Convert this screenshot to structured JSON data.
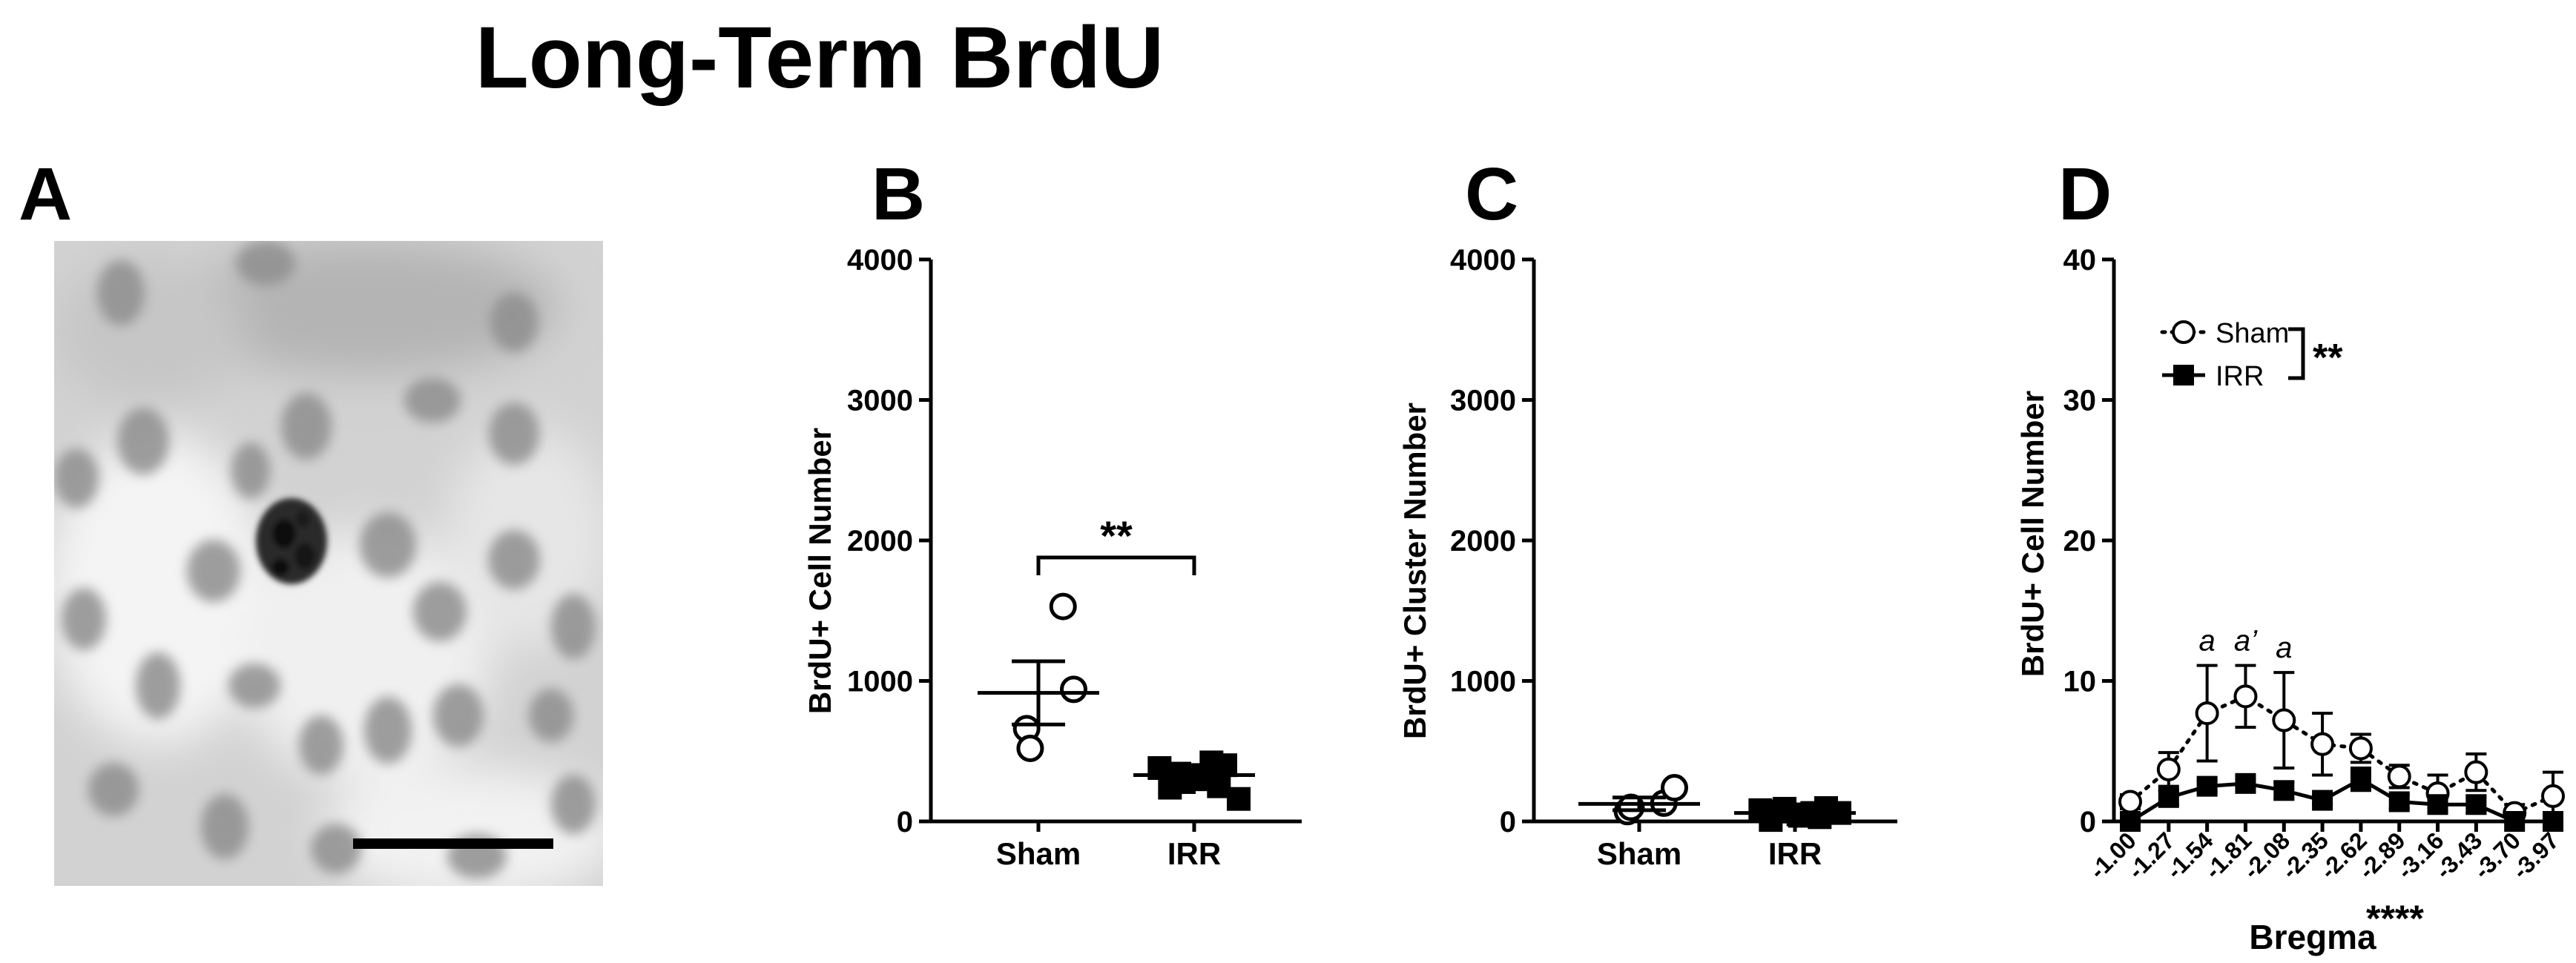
{
  "figure": {
    "title": "Long-Term BrdU"
  },
  "panel_a": {
    "letter": "A"
  },
  "panel_b": {
    "letter": "B",
    "significance": "**"
  },
  "panel_c": {
    "letter": "C"
  },
  "panel_d": {
    "letter": "D",
    "legend_significance": "**",
    "xlabel_significance": "****",
    "annotations": [
      "a",
      "a’",
      "a"
    ]
  },
  "colors": {
    "ink": "#000000",
    "open_marker_fill": "#ffffff",
    "closed_marker_fill": "#000000"
  },
  "chart_data": [
    {
      "panel": "B",
      "type": "scatter",
      "categories": [
        "Sham",
        "IRR"
      ],
      "ylabel": "BrdU+ Cell Number",
      "xlabel": "",
      "ylim": [
        0,
        4000
      ],
      "yticks": [
        0,
        1000,
        2000,
        3000,
        4000
      ],
      "series": [
        {
          "name": "Sham",
          "marker": "open-circle",
          "points": [
            1530,
            660,
            520,
            940
          ],
          "mean": 915,
          "sem_low": 690,
          "sem_high": 1140
        },
        {
          "name": "IRR",
          "marker": "filled-square",
          "points": [
            400,
            380,
            420,
            340,
            300,
            330,
            280,
            250,
            240,
            160
          ],
          "mean": 330,
          "sem_low": 285,
          "sem_high": 375
        }
      ],
      "comparison": {
        "between": [
          "Sham",
          "IRR"
        ],
        "label": "**"
      }
    },
    {
      "panel": "C",
      "type": "scatter",
      "categories": [
        "Sham",
        "IRR"
      ],
      "ylabel": "BrdU+ Cluster Number",
      "xlabel": "",
      "ylim": [
        0,
        4000
      ],
      "yticks": [
        0,
        1000,
        2000,
        3000,
        4000
      ],
      "series": [
        {
          "name": "Sham",
          "marker": "open-circle",
          "points": [
            130,
            70,
            100,
            240
          ],
          "mean": 125,
          "sem_low": 80,
          "sem_high": 170
        },
        {
          "name": "IRR",
          "marker": "filled-square",
          "points": [
            95,
            80,
            60,
            70,
            50,
            40,
            90,
            30,
            10,
            60
          ],
          "mean": 60,
          "sem_low": 45,
          "sem_high": 78
        }
      ]
    },
    {
      "panel": "D",
      "type": "line",
      "x": [
        "-1.00",
        "-1.27",
        "-1.54",
        "-1.81",
        "-2.08",
        "-2.35",
        "-2.62",
        "-2.89",
        "-3.16",
        "-3.43",
        "-3.70",
        "-3.97"
      ],
      "xlabel": "Bregma",
      "ylabel": "BrdU+ Cell Number",
      "ylim": [
        0,
        40
      ],
      "yticks": [
        0,
        10,
        20,
        30,
        40
      ],
      "legend": {
        "position": "top-left",
        "entries": [
          "Sham",
          "IRR"
        ]
      },
      "series": [
        {
          "name": "Sham",
          "marker": "open-circle",
          "line": "dotted",
          "values": [
            1.4,
            3.7,
            7.7,
            8.9,
            7.2,
            5.5,
            5.2,
            3.2,
            2.0,
            3.5,
            0.6,
            1.8
          ],
          "errors": [
            0.5,
            1.2,
            3.4,
            2.2,
            3.4,
            2.2,
            1.0,
            0.8,
            1.3,
            1.3,
            0.6,
            1.7
          ]
        },
        {
          "name": "IRR",
          "marker": "filled-square",
          "line": "solid",
          "values": [
            0.0,
            1.7,
            2.5,
            2.7,
            2.2,
            1.5,
            3.0,
            1.4,
            1.2,
            1.2,
            0.0,
            0.0
          ],
          "errors": [
            0.2,
            0.5,
            0.4,
            0.3,
            0.6,
            0.3,
            0.8,
            0.5,
            0.4,
            0.6,
            0.0,
            0.2
          ]
        }
      ],
      "annotations": [
        {
          "x": "-1.54",
          "series": "Sham",
          "label": "a"
        },
        {
          "x": "-1.81",
          "series": "Sham",
          "label": "a’"
        },
        {
          "x": "-2.08",
          "series": "Sham",
          "label": "a"
        }
      ]
    }
  ]
}
